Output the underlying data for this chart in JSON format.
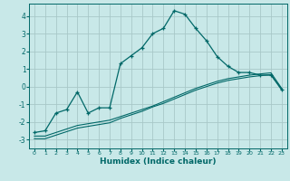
{
  "xlabel": "Humidex (Indice chaleur)",
  "background_color": "#c8e8e8",
  "grid_color": "#a8c8c8",
  "line_color": "#006868",
  "xlim": [
    -0.5,
    23.5
  ],
  "ylim": [
    -3.5,
    4.7
  ],
  "yticks": [
    -3,
    -2,
    -1,
    0,
    1,
    2,
    3,
    4
  ],
  "xticks": [
    0,
    1,
    2,
    3,
    4,
    5,
    6,
    7,
    8,
    9,
    10,
    11,
    12,
    13,
    14,
    15,
    16,
    17,
    18,
    19,
    20,
    21,
    22,
    23
  ],
  "line1_x": [
    0,
    1,
    2,
    3,
    4,
    5,
    6,
    7,
    8,
    9,
    10,
    11,
    12,
    13,
    14,
    15,
    16,
    17,
    18,
    19,
    20,
    21,
    22,
    23
  ],
  "line1_y": [
    -2.6,
    -2.5,
    -1.5,
    -1.3,
    -0.3,
    -1.5,
    -1.2,
    -1.2,
    1.3,
    1.75,
    2.2,
    3.0,
    3.3,
    4.3,
    4.1,
    3.3,
    2.6,
    1.7,
    1.15,
    0.8,
    0.8,
    0.65,
    0.65,
    -0.15
  ],
  "line2_x": [
    0,
    1,
    2,
    3,
    4,
    5,
    6,
    7,
    8,
    9,
    10,
    11,
    12,
    13,
    14,
    15,
    16,
    17,
    18,
    19,
    20,
    21,
    22,
    23
  ],
  "line2_y": [
    -2.8,
    -2.8,
    -2.6,
    -2.4,
    -2.2,
    -2.1,
    -2.0,
    -1.9,
    -1.7,
    -1.5,
    -1.3,
    -1.1,
    -0.85,
    -0.6,
    -0.35,
    -0.1,
    0.1,
    0.3,
    0.45,
    0.55,
    0.65,
    0.72,
    0.78,
    -0.1
  ],
  "line3_x": [
    0,
    1,
    2,
    3,
    4,
    5,
    6,
    7,
    8,
    9,
    10,
    11,
    12,
    13,
    14,
    15,
    16,
    17,
    18,
    19,
    20,
    21,
    22,
    23
  ],
  "line3_y": [
    -2.95,
    -2.95,
    -2.75,
    -2.55,
    -2.35,
    -2.25,
    -2.15,
    -2.05,
    -1.8,
    -1.6,
    -1.4,
    -1.15,
    -0.95,
    -0.7,
    -0.45,
    -0.2,
    0.0,
    0.2,
    0.35,
    0.45,
    0.55,
    0.62,
    0.68,
    -0.2
  ]
}
